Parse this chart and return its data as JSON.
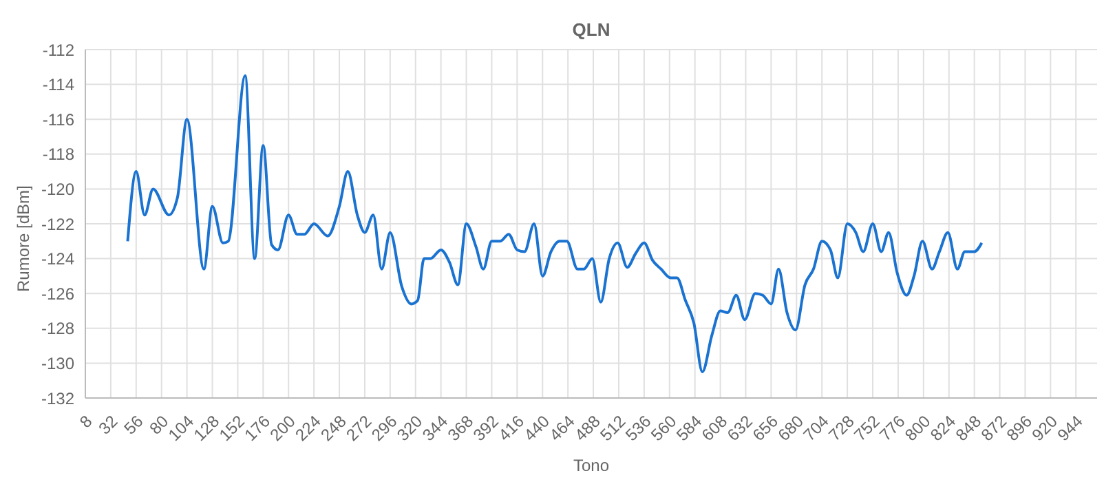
{
  "chart_data": {
    "type": "line",
    "title": "QLN",
    "xlabel": "Tono",
    "ylabel": "Rumore [dBm]",
    "x": [
      48,
      56,
      64,
      72,
      87,
      95,
      104,
      120,
      128,
      138,
      143,
      159,
      168,
      176,
      184,
      190,
      200,
      208,
      215,
      224,
      237,
      248,
      256,
      265,
      272,
      280,
      288,
      296,
      307,
      316,
      322,
      328,
      334,
      344,
      352,
      360,
      368,
      377,
      384,
      392,
      400,
      408,
      416,
      423,
      432,
      440,
      448,
      456,
      463,
      473,
      479,
      487,
      495,
      503,
      511,
      520,
      528,
      536,
      544,
      552,
      561,
      567,
      575,
      583,
      591,
      600,
      608,
      615,
      623,
      631,
      641,
      648,
      656,
      663,
      671,
      679,
      688,
      696,
      704,
      712,
      719,
      728,
      736,
      743,
      752,
      760,
      767,
      775,
      784,
      791,
      799,
      808,
      815,
      823,
      832,
      839,
      848,
      855
    ],
    "series": [
      {
        "color": "#1a73d1",
        "values": [
          -123,
          -119,
          -121.5,
          -120,
          -121.5,
          -120.5,
          -116,
          -124.6,
          -121,
          -123.1,
          -123,
          -113.5,
          -124,
          -117.5,
          -123.2,
          -123.5,
          -121.5,
          -122.6,
          -122.6,
          -122,
          -122.7,
          -121,
          -119,
          -121.5,
          -122.5,
          -121.5,
          -124.6,
          -122.5,
          -125.6,
          -126.6,
          -126.4,
          -124,
          -124,
          -123.5,
          -124.2,
          -125.5,
          -122,
          -123.3,
          -124.6,
          -123,
          -123,
          -122.6,
          -123.5,
          -123.6,
          -122,
          -125,
          -123.6,
          -123,
          -123,
          -124.6,
          -124.6,
          -124,
          -126.5,
          -124,
          -123.1,
          -124.5,
          -123.7,
          -123.1,
          -124.1,
          -124.6,
          -125.1,
          -125.1,
          -126.4,
          -127.7,
          -130.5,
          -128.4,
          -127,
          -127.1,
          -126.1,
          -127.5,
          -126,
          -126.1,
          -126.6,
          -124.6,
          -127.1,
          -128.1,
          -125.5,
          -124.6,
          -123,
          -123.5,
          -125.1,
          -122,
          -122.5,
          -123.6,
          -122,
          -123.6,
          -122.5,
          -124.8,
          -126.1,
          -125,
          -123,
          -124.6,
          -123.6,
          -122.5,
          -124.6,
          -123.6,
          -123.6,
          -123.1
        ]
      }
    ],
    "xlim": [
      8,
      964
    ],
    "xticks": [
      8,
      32,
      56,
      80,
      104,
      128,
      152,
      176,
      200,
      224,
      248,
      272,
      296,
      320,
      344,
      368,
      392,
      416,
      440,
      464,
      488,
      512,
      536,
      560,
      584,
      608,
      632,
      656,
      680,
      704,
      728,
      752,
      776,
      800,
      824,
      848,
      872,
      896,
      920,
      944
    ],
    "ylim": [
      -132,
      -112
    ],
    "yticks": [
      -132,
      -130,
      -128,
      -126,
      -124,
      -122,
      -120,
      -118,
      -116,
      -114,
      -112
    ],
    "grid": true,
    "marker": "none",
    "line_style": "solid"
  }
}
